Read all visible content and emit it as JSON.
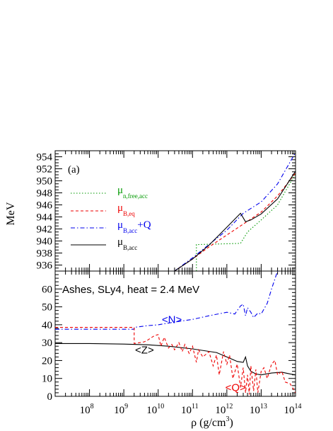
{
  "chart_data": [
    {
      "type": "line",
      "panel_label": "(a)",
      "ylabel": "MeV",
      "xscale": "log",
      "xlim": [
        10000000.0,
        100000000000000.0
      ],
      "ylim": [
        935,
        955
      ],
      "y_ticks": [
        "936",
        "938",
        "940",
        "942",
        "944",
        "946",
        "948",
        "950",
        "952",
        "954"
      ],
      "legend_placement": "middle-left",
      "series": [
        {
          "name": "μ",
          "subscript": "n,free,acc",
          "color": "#009900",
          "dash": "dotted",
          "x": [
            130000000000.0,
            130000000000.0,
            2500000000000.0,
            4000000000000.0,
            10000000000000.0,
            30000000000000.0,
            100000000000000.0
          ],
          "y": [
            935.0,
            939.4,
            939.6,
            941.5,
            943.5,
            946.0,
            951.2
          ]
        },
        {
          "name": "μ",
          "subscript": "B,eq",
          "color": "#ee0000",
          "dash": "dashed",
          "x": [
            30000000000.0,
            100000000000.0,
            300000000000.0,
            1000000000000.0,
            3000000000000.0,
            10000000000000.0,
            30000000000000.0,
            100000000000000.0
          ],
          "y": [
            935.0,
            937.0,
            939.0,
            941.0,
            942.8,
            944.8,
            947.5,
            951.3
          ]
        },
        {
          "name": "μ",
          "subscript": "B,acc",
          "suffix": "+Q",
          "color": "#0000ee",
          "dash": "dashdot",
          "x": [
            30000000000.0,
            100000000000.0,
            300000000000.0,
            1000000000000.0,
            3000000000000.0,
            10000000000000.0,
            30000000000000.0,
            100000000000000.0
          ],
          "y": [
            935.0,
            937.2,
            939.4,
            941.8,
            944.6,
            946.5,
            949.5,
            954.7
          ]
        },
        {
          "name": "μ",
          "subscript": "B,acc",
          "color": "#000000",
          "dash": "solid",
          "x": [
            30000000000.0,
            100000000000.0,
            300000000000.0,
            1000000000000.0,
            2500000000000.0,
            3500000000000.0,
            5000000000000.0,
            10000000000000.0,
            30000000000000.0,
            100000000000000.0
          ],
          "y": [
            935.0,
            937.0,
            939.3,
            942.3,
            944.6,
            943.2,
            943.5,
            944.5,
            947.0,
            951.6
          ]
        }
      ]
    },
    {
      "type": "line",
      "annotation": "Ashes, SLy4, heat = 2.4 MeV",
      "xlabel": "ρ (g/cm",
      "xlabel_sup": "3",
      "xlabel_end": ")",
      "xscale": "log",
      "xlim": [
        10000000.0,
        100000000000000.0
      ],
      "ylim": [
        0,
        70
      ],
      "y_ticks": [
        "0",
        "10",
        "20",
        "30",
        "40",
        "50",
        "60"
      ],
      "x_ticks": [
        {
          "base": "10",
          "exp": "8",
          "value": 100000000.0
        },
        {
          "base": "10",
          "exp": "9",
          "value": 1000000000.0
        },
        {
          "base": "10",
          "exp": "10",
          "value": 10000000000.0
        },
        {
          "base": "10",
          "exp": "11",
          "value": 100000000000.0
        },
        {
          "base": "10",
          "exp": "12",
          "value": 1000000000000.0
        },
        {
          "base": "10",
          "exp": "13",
          "value": 10000000000000.0
        },
        {
          "base": "10",
          "exp": "14",
          "value": 100000000000000.0
        }
      ],
      "series": [
        {
          "name": "<N>",
          "color": "#0000ee",
          "dash": "dashdot",
          "label_x": 25000000000.0,
          "label_y": 41,
          "x": [
            10000000.0,
            2000000000.0,
            2000000000.0,
            5000000000.0,
            10000000000.0,
            30000000000.0,
            100000000000.0,
            300000000000.0,
            1000000000000.0,
            1700000000000.0,
            2500000000000.0,
            3000000000000.0,
            3500000000000.0,
            4000000000000.0,
            5000000000000.0,
            6000000000000.0,
            8000000000000.0,
            10000000000000.0,
            15000000000000.0,
            20000000000000.0,
            30000000000000.0
          ],
          "y": [
            37.5,
            37.5,
            38.5,
            39.5,
            40.0,
            41.5,
            43.0,
            45.0,
            47.0,
            46.0,
            50.5,
            51.5,
            45.0,
            49.5,
            47.0,
            44.0,
            46.5,
            46.0,
            52.0,
            60.0,
            70.0
          ]
        },
        {
          "name": "<Z>",
          "color": "#000000",
          "dash": "solid",
          "label_x": 4000000000.0,
          "label_y": 24,
          "x": [
            10000000.0,
            100000000.0,
            1000000000.0,
            5000000000.0,
            20000000000.0,
            100000000000.0,
            500000000000.0,
            1000000000000.0,
            2000000000000.0,
            3000000000000.0,
            3500000000000.0,
            4000000000000.0,
            5000000000000.0,
            7000000000000.0,
            10000000000000.0,
            20000000000000.0,
            40000000000000.0,
            70000000000000.0,
            100000000000000.0
          ],
          "y": [
            29.5,
            29.5,
            29.2,
            28.8,
            28.0,
            26.5,
            24.5,
            22.0,
            19.5,
            19.0,
            22.0,
            17.0,
            14.0,
            12.5,
            12.0,
            13.0,
            13.5,
            12.5,
            12.0
          ]
        },
        {
          "name": "<Q>",
          "color": "#ee0000",
          "dash": "dashed",
          "label_x": 1800000000000.0,
          "label_y": 3,
          "x": [
            10000000.0,
            2000000000.0,
            2000000000.0,
            3000000000.0,
            4000000000.0,
            5000000000.0,
            6000000000.0,
            8000000000.0,
            10000000000.0,
            12000000000.0,
            15000000000.0,
            20000000000.0,
            25000000000.0,
            30000000000.0,
            40000000000.0,
            50000000000.0,
            60000000000.0,
            80000000000.0,
            100000000000.0,
            130000000000.0,
            150000000000.0,
            200000000000.0,
            300000000000.0,
            400000000000.0,
            500000000000.0,
            600000000000.0,
            800000000000.0,
            1000000000000.0,
            1200000000000.0,
            1500000000000.0,
            2000000000000.0,
            2500000000000.0,
            3000000000000.0,
            3500000000000.0,
            4000000000000.0,
            4500000000000.0,
            5000000000000.0,
            6000000000000.0,
            7000000000000.0,
            8000000000000.0,
            10000000000000.0,
            12000000000000.0,
            15000000000000.0,
            20000000000000.0,
            25000000000000.0,
            30000000000000.0,
            40000000000000.0,
            50000000000000.0,
            70000000000000.0,
            100000000000000.0
          ],
          "y": [
            38.5,
            38.5,
            29.5,
            30.0,
            30.5,
            31.5,
            32.5,
            34.0,
            34.5,
            28.0,
            33.0,
            27.0,
            29.0,
            26.0,
            30.0,
            25.0,
            29.0,
            24.0,
            28.0,
            19.0,
            26.0,
            22.0,
            25.0,
            17.0,
            23.0,
            12.0,
            25.0,
            18.0,
            23.0,
            10.0,
            18.0,
            5.0,
            16.0,
            2.0,
            12.0,
            1.0,
            17.0,
            3.0,
            15.0,
            2.0,
            14.0,
            16.0,
            10.0,
            18.0,
            20.0,
            12.0,
            14.0,
            8.0,
            7.0,
            2.0
          ]
        }
      ]
    }
  ]
}
